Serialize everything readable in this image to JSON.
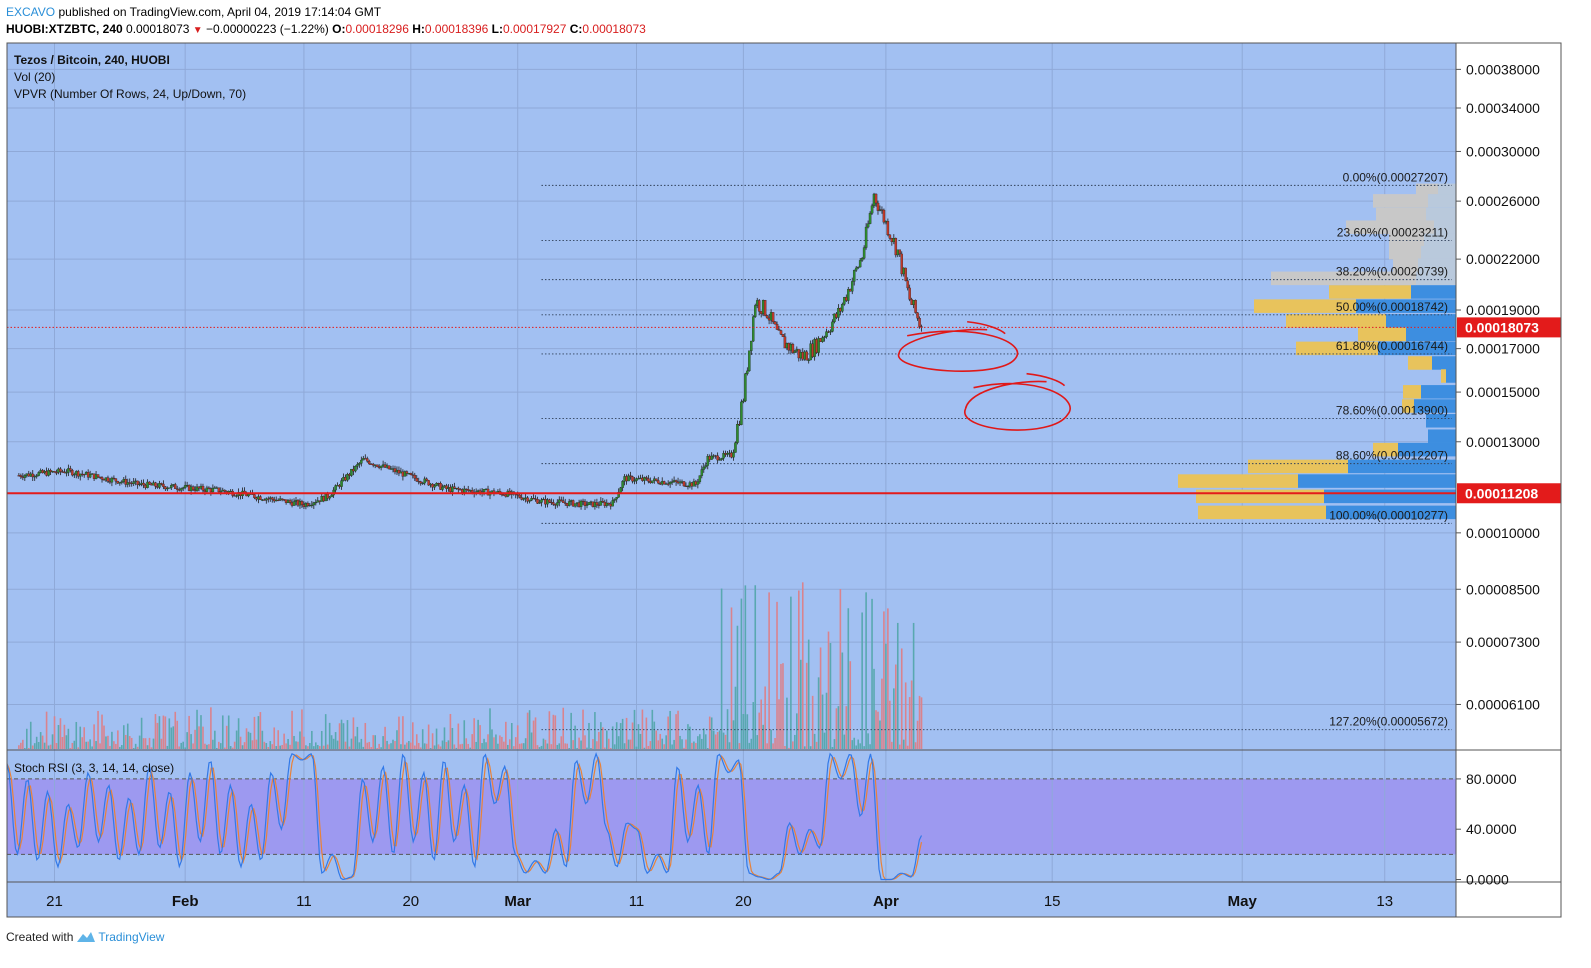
{
  "header": {
    "author": "EXCAVO",
    "published": "published on TradingView.com, April 04, 2019 17:14:04 GMT",
    "symbol": "HUOBI:XTZBTC, 240",
    "last": "0.00018073",
    "change": "−0.00000223 (−1.22%)",
    "o_label": "O:",
    "o_value": "0.00018296",
    "h_label": "H:",
    "h_value": "0.00018396",
    "l_label": "L:",
    "l_value": "0.00017927",
    "c_label": "C:",
    "c_value": "0.00018073"
  },
  "legend": {
    "title": "Tezos / Bitcoin, 240, HUOBI",
    "vol": "Vol (20)",
    "vpvr": "VPVR (Number Of Rows, 24, Up/Down, 70)"
  },
  "footer": {
    "created_with": "Created with",
    "brand": "TradingView"
  },
  "colors": {
    "background": "#a2c0f2",
    "stoch_band": "#9d99f0",
    "candle_up": "#2e8b2e",
    "candle_down": "#c0392b",
    "level_line": "#e31b1b",
    "vol_up": "#59a8b0",
    "vol_down": "#d9838e",
    "vpvr_up": "#3d8ee0",
    "vpvr_down": "#e8c35c",
    "vpvr_out_up": "#b9c9dc",
    "vpvr_out_down": "#c8c8c8",
    "rsi_k": "#3279e8",
    "rsi_d": "#e8823a"
  },
  "chart_data": [
    {
      "type": "candlestick",
      "x_axis": {
        "labels": [
          "21",
          "Feb",
          "11",
          "20",
          "Mar",
          "11",
          "20",
          "Apr",
          "15",
          "May",
          "13"
        ]
      },
      "y_axis": {
        "scale": "log",
        "tick_labels": [
          "0.00038000",
          "0.00034000",
          "0.00030000",
          "0.00026000",
          "0.00022000",
          "0.00019000",
          "0.00017000",
          "0.00015000",
          "0.00013000",
          "0.00010000",
          "0.00008500",
          "0.00007300",
          "0.00006100"
        ],
        "tick_values": [
          0.00038,
          0.00034,
          0.0003,
          0.00026,
          0.00022,
          0.00019,
          0.00017,
          0.00015,
          0.00013,
          0.0001,
          8.5e-05,
          7.3e-05,
          6.1e-05
        ],
        "range": [
          5.35e-05,
          0.00041
        ]
      },
      "price_path": {
        "dates": [
          "2019-01-18",
          "2019-01-22",
          "2019-01-28",
          "2019-02-04",
          "2019-02-11",
          "2019-02-13",
          "2019-02-16",
          "2019-02-19",
          "2019-02-23",
          "2019-02-28",
          "2019-03-03",
          "2019-03-07",
          "2019-03-09",
          "2019-03-10",
          "2019-03-16",
          "2019-03-17",
          "2019-03-19",
          "2019-03-20",
          "2019-03-21",
          "2019-03-22",
          "2019-03-23",
          "2019-03-25",
          "2019-03-26",
          "2019-03-28",
          "2019-03-30",
          "2019-03-31",
          "2019-04-02",
          "2019-04-03",
          "2019-04-04"
        ],
        "close": [
          0.000118,
          0.0001195,
          0.000115,
          0.000113,
          0.0001085,
          0.000111,
          0.0001235,
          0.000119,
          0.0001135,
          0.000112,
          0.0001095,
          0.0001085,
          0.000109,
          0.000117,
          0.000115,
          0.000124,
          0.000125,
          0.000148,
          0.000195,
          0.000189,
          0.000175,
          0.000166,
          0.000171,
          0.000188,
          0.000222,
          0.000265,
          0.000225,
          0.000196,
          0.00018073
        ]
      },
      "horizontal_levels": [
        {
          "value": 0.00018073,
          "label": "0.00018073",
          "style": "dotted"
        },
        {
          "value": 0.00011208,
          "label": "0.00011208",
          "style": "solid"
        }
      ],
      "fibonacci": {
        "start_date": "2019-03-03",
        "levels": [
          {
            "label": "0.00%(0.00027207)",
            "value": 0.00027207
          },
          {
            "label": "23.60%(0.00023211)",
            "value": 0.00023211
          },
          {
            "label": "38.20%(0.00020739)",
            "value": 0.00020739
          },
          {
            "label": "50.00%(0.00018742)",
            "value": 0.00018742
          },
          {
            "label": "61.80%(0.00016744)",
            "value": 0.00016744
          },
          {
            "label": "78.60%(0.00013900)",
            "value": 0.000139
          },
          {
            "label": "88.60%(0.00012207)",
            "value": 0.00012207
          },
          {
            "label": "100.00%(0.00010277)",
            "value": 0.00010277
          },
          {
            "label": "127.20%(0.00005672)",
            "value": 5.672e-05
          }
        ]
      },
      "annotations": [
        {
          "type": "ellipse",
          "center_date": "2019-04-07",
          "center_value": 0.000168
        },
        {
          "type": "ellipse",
          "center_date": "2019-04-12",
          "center_value": 0.000143
        }
      ],
      "volume_profile": {
        "rows": [
          {
            "price": 0.000268,
            "up": 18,
            "down": 22,
            "in_range": false
          },
          {
            "price": 0.00026,
            "up": 28,
            "down": 55,
            "in_range": false
          },
          {
            "price": 0.00025,
            "up": 30,
            "down": 50,
            "in_range": false
          },
          {
            "price": 0.000241,
            "up": 22,
            "down": 88,
            "in_range": false
          },
          {
            "price": 0.000232,
            "up": 32,
            "down": 35,
            "in_range": false
          },
          {
            "price": 0.000224,
            "up": 35,
            "down": 32,
            "in_range": false
          },
          {
            "price": 0.000216,
            "up": 38,
            "down": 25,
            "in_range": false
          },
          {
            "price": 0.000208,
            "up": 40,
            "down": 145,
            "in_range": false
          },
          {
            "price": 0.0002,
            "up": 45,
            "down": 82,
            "in_range": true
          },
          {
            "price": 0.000192,
            "up": 100,
            "down": 102,
            "in_range": true
          },
          {
            "price": 0.000184,
            "up": 70,
            "down": 100,
            "in_range": true
          },
          {
            "price": 0.000177,
            "up": 50,
            "down": 48,
            "in_range": true
          },
          {
            "price": 0.00017,
            "up": 78,
            "down": 82,
            "in_range": true
          },
          {
            "price": 0.000163,
            "up": 24,
            "down": 24,
            "in_range": true
          },
          {
            "price": 0.000157,
            "up": 10,
            "down": 5,
            "in_range": true
          },
          {
            "price": 0.00015,
            "up": 35,
            "down": 18,
            "in_range": true
          },
          {
            "price": 0.000144,
            "up": 42,
            "down": 12,
            "in_range": true
          },
          {
            "price": 0.000138,
            "up": 30,
            "down": 0,
            "in_range": true
          },
          {
            "price": 0.000132,
            "up": 28,
            "down": 0,
            "in_range": true
          },
          {
            "price": 0.000127,
            "up": 58,
            "down": 25,
            "in_range": true
          },
          {
            "price": 0.000121,
            "up": 108,
            "down": 100,
            "in_range": true
          },
          {
            "price": 0.000116,
            "up": 158,
            "down": 120,
            "in_range": true
          },
          {
            "price": 0.000111,
            "up": 132,
            "down": 128,
            "in_range": true
          },
          {
            "price": 0.000106,
            "up": 130,
            "down": 128,
            "in_range": true
          }
        ]
      }
    },
    {
      "type": "line",
      "title": "Stoch RSI (3, 3, 14, 14, close)",
      "y_axis": {
        "tick_labels": [
          "80.0000",
          "40.0000",
          "0.0000"
        ],
        "tick_values": [
          80,
          40,
          0
        ],
        "range": [
          -2,
          103
        ]
      },
      "band": [
        20,
        80
      ],
      "series": [
        {
          "values_approx_path": [
            92,
            20,
            80,
            15,
            70,
            10,
            60,
            25,
            85,
            30,
            75,
            15,
            65,
            20,
            90,
            25,
            70,
            10,
            85,
            30,
            95,
            20,
            75,
            10,
            60,
            15,
            85,
            40,
            100,
            95,
            100,
            5,
            20,
            0,
            2,
            80,
            30,
            90,
            20,
            100,
            30,
            85,
            15,
            95,
            30,
            75,
            10,
            100,
            60,
            90,
            20,
            5,
            15,
            5,
            40,
            10,
            95,
            60,
            100,
            40,
            10,
            45,
            40,
            5,
            20,
            5,
            90,
            30,
            75,
            20,
            100,
            85,
            95,
            5,
            2,
            0,
            5,
            45,
            20,
            40,
            25,
            100,
            80,
            100,
            50,
            100,
            0,
            0,
            5,
            2,
            35
          ]
        }
      ]
    }
  ]
}
